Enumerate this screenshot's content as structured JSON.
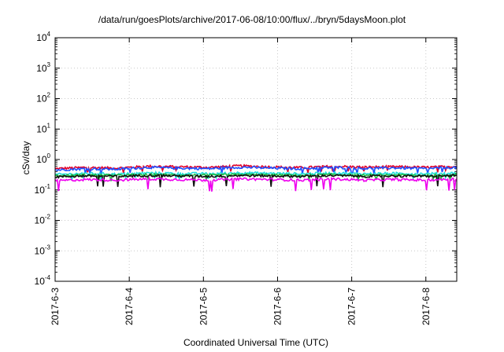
{
  "chart_data": {
    "type": "line",
    "title": "/data/run/goesPlots/archive/2017-06-08/10:00/flux/../bryn/5daysMoon.plot",
    "xlabel": "Coordinated Universal Time (UTC)",
    "ylabel": "cSv/day",
    "yscale": "log",
    "ylim": [
      0.0001,
      10000
    ],
    "y_ticks": [
      {
        "value": 0.0001,
        "base": "10",
        "exp": "-4"
      },
      {
        "value": 0.001,
        "base": "10",
        "exp": "-3"
      },
      {
        "value": 0.01,
        "base": "10",
        "exp": "-2"
      },
      {
        "value": 0.1,
        "base": "10",
        "exp": "-1"
      },
      {
        "value": 1,
        "base": "10",
        "exp": "0"
      },
      {
        "value": 10,
        "base": "10",
        "exp": "1"
      },
      {
        "value": 100,
        "base": "10",
        "exp": "2"
      },
      {
        "value": 1000,
        "base": "10",
        "exp": "3"
      },
      {
        "value": 10000,
        "base": "10",
        "exp": "4"
      }
    ],
    "xlim": [
      "2017-06-03 00:00",
      "2017-06-08 10:00"
    ],
    "x_ticks": [
      "2017-6-3",
      "2017-6-4",
      "2017-6-5",
      "2017-6-6",
      "2017-6-7",
      "2017-6-8"
    ],
    "grid": true,
    "legend": "none",
    "series": [
      {
        "color": "#e0002a",
        "values": [
          0.5,
          0.55,
          0.52,
          0.6,
          0.58,
          0.55,
          0.62,
          0.57,
          0.54,
          0.6,
          0.56,
          0.58,
          0.55,
          0.6
        ]
      },
      {
        "color": "#1f4fff",
        "values": [
          0.45,
          0.5,
          0.48,
          0.55,
          0.52,
          0.5,
          0.56,
          0.52,
          0.5,
          0.55,
          0.51,
          0.53,
          0.5,
          0.55
        ]
      },
      {
        "color": "#22dddd",
        "values": [
          0.32,
          0.35,
          0.33,
          0.36,
          0.35,
          0.34,
          0.37,
          0.35,
          0.34,
          0.36,
          0.34,
          0.35,
          0.34,
          0.36
        ]
      },
      {
        "color": "#22bb44",
        "values": [
          0.29,
          0.31,
          0.3,
          0.32,
          0.31,
          0.3,
          0.32,
          0.31,
          0.3,
          0.32,
          0.3,
          0.31,
          0.3,
          0.32
        ]
      },
      {
        "color": "#111111",
        "values": [
          0.27,
          0.29,
          0.28,
          0.3,
          0.29,
          0.28,
          0.3,
          0.29,
          0.28,
          0.3,
          0.28,
          0.29,
          0.28,
          0.3
        ]
      },
      {
        "color": "#ee00ee",
        "values": [
          0.2,
          0.22,
          0.21,
          0.23,
          0.22,
          0.21,
          0.23,
          0.22,
          0.21,
          0.23,
          0.21,
          0.22,
          0.21,
          0.23
        ]
      }
    ]
  }
}
